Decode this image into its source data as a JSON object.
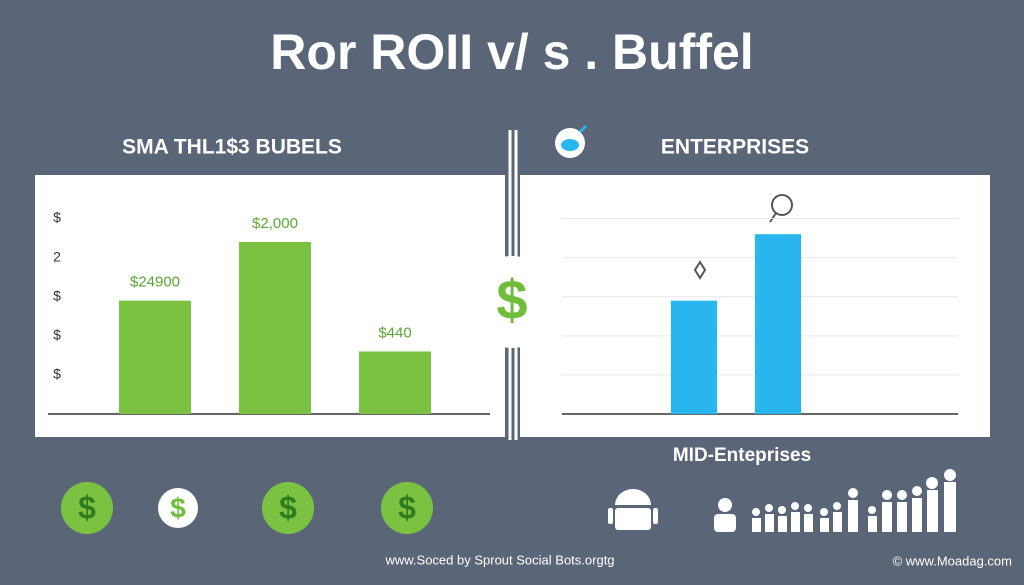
{
  "title": "Ror ROII v/ s . Buffel",
  "chart_data": [
    {
      "type": "bar",
      "title": "SMA THL1$3 BUBELS",
      "categories": [
        null,
        null,
        null
      ],
      "values": [
        2.9,
        4.4,
        1.6
      ],
      "color": "#7cc242",
      "ylim": [
        0,
        5.5
      ],
      "yticks": [
        {
          "value": 1,
          "label": "$"
        },
        {
          "value": 2,
          "label": "$"
        },
        {
          "value": 3,
          "label": "$"
        },
        {
          "value": 4,
          "label": "2"
        },
        {
          "value": 5,
          "label": "$"
        }
      ],
      "grid": false,
      "annotations": [
        "$24900",
        "$2,000",
        "$440"
      ]
    },
    {
      "type": "bar",
      "title": "ENTERPRISES",
      "x_label": "MID-Enteprises",
      "categories": [
        null,
        null
      ],
      "values": [
        2.9,
        4.6
      ],
      "color": "#29b6ee",
      "ylim": [
        0,
        5.5
      ],
      "yticks": [
        1,
        2,
        3,
        4,
        5
      ],
      "tick_labels": false,
      "grid": true
    }
  ],
  "center_icon": "$",
  "bottom_icons": [
    "$",
    "$",
    "$",
    "$"
  ],
  "footer": {
    "left": "www.Soced by Sprout Social Bots.orgtg",
    "right": "© www.Moadag.com"
  }
}
